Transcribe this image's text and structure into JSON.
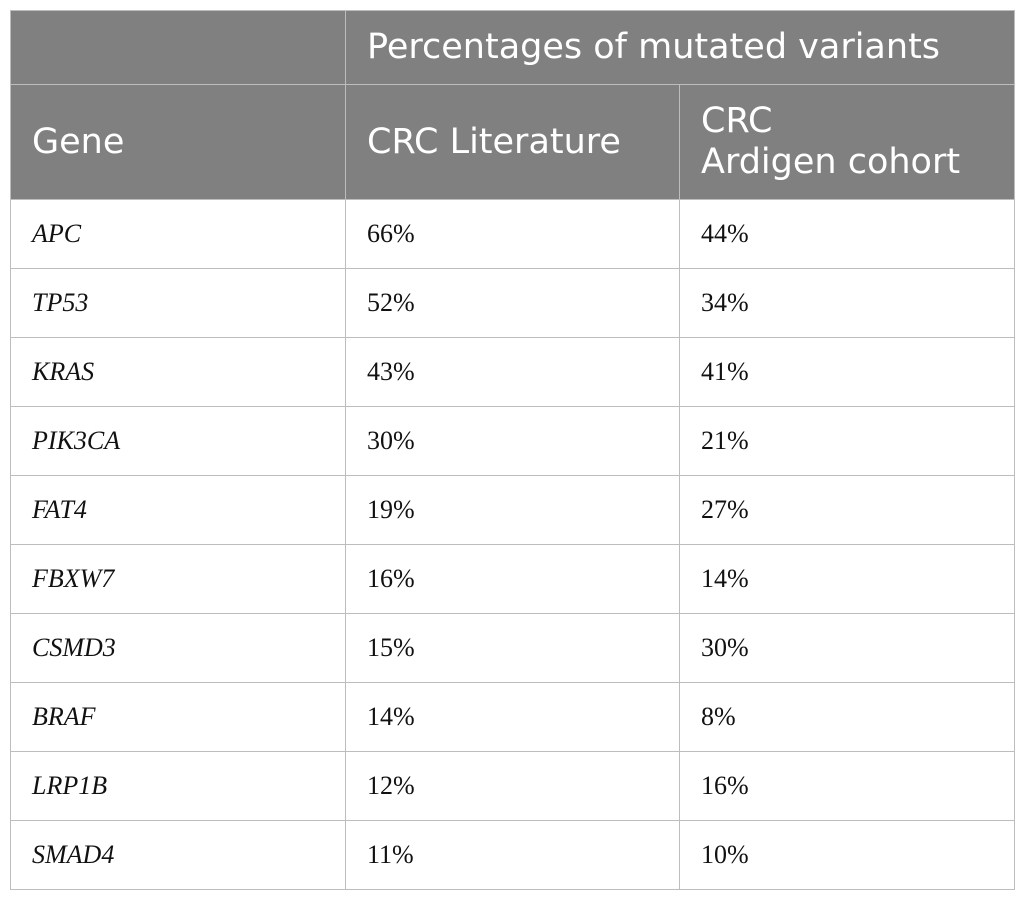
{
  "table": {
    "group_header": "Percentages of mutated variants",
    "columns": {
      "gene": "Gene",
      "literature": "CRC Literature",
      "cohort_line1": "CRC",
      "cohort_line2": "Ardigen cohort"
    },
    "rows": [
      {
        "gene": "APC",
        "literature": "66%",
        "cohort": "44%"
      },
      {
        "gene": "TP53",
        "literature": "52%",
        "cohort": "34%"
      },
      {
        "gene": "KRAS",
        "literature": "43%",
        "cohort": "41%"
      },
      {
        "gene": "PIK3CA",
        "literature": "30%",
        "cohort": "21%"
      },
      {
        "gene": "FAT4",
        "literature": "19%",
        "cohort": "27%"
      },
      {
        "gene": "FBXW7",
        "literature": "16%",
        "cohort": "14%"
      },
      {
        "gene": "CSMD3",
        "literature": "15%",
        "cohort": "30%"
      },
      {
        "gene": "BRAF",
        "literature": "14%",
        "cohort": "8%"
      },
      {
        "gene": "LRP1B",
        "literature": "12%",
        "cohort": "16%"
      },
      {
        "gene": "SMAD4",
        "literature": "11%",
        "cohort": "10%"
      }
    ]
  },
  "colors": {
    "header_bg": "#808080",
    "header_text": "#ffffff",
    "border": "#bdbdbd",
    "body_text": "#111111"
  }
}
